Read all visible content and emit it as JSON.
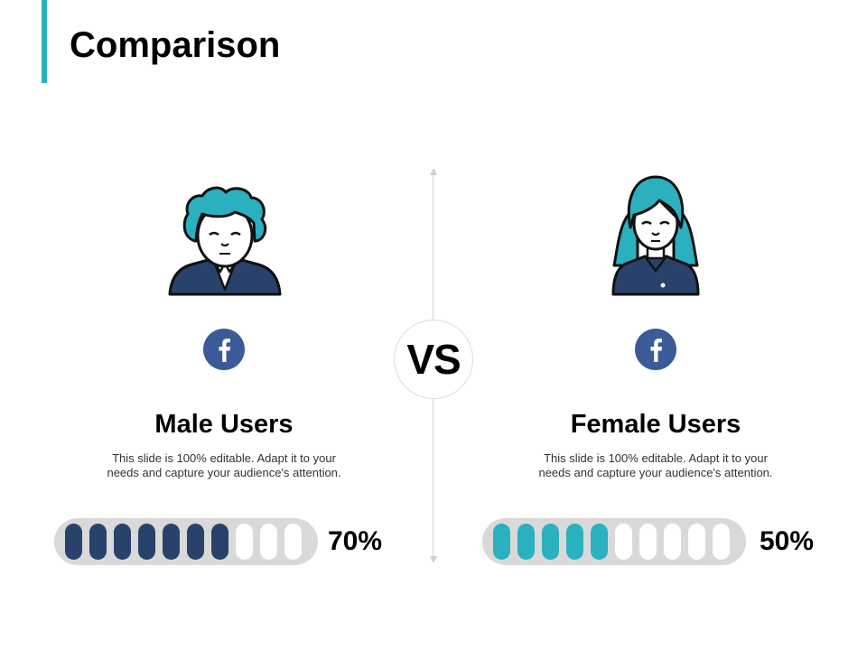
{
  "title": "Comparison",
  "vs_label": "VS",
  "colors": {
    "accent": "#2bb0bf",
    "navy": "#28426b",
    "facebook": "#3b5a98"
  },
  "left": {
    "icon": "facebook-icon",
    "heading": "Male Users",
    "description_lines": [
      "This slide is 100% editable. Adapt it to your",
      "needs and capture your audience's attention."
    ],
    "percent_label": "70%",
    "level": 0.7,
    "segments_total": 10
  },
  "right": {
    "icon": "facebook-icon",
    "heading": "Female Users",
    "description_lines": [
      "This slide is 100% editable. Adapt it to your",
      "needs and capture your audience's attention."
    ],
    "percent_label": "50%",
    "level": 0.5,
    "segments_total": 10
  }
}
